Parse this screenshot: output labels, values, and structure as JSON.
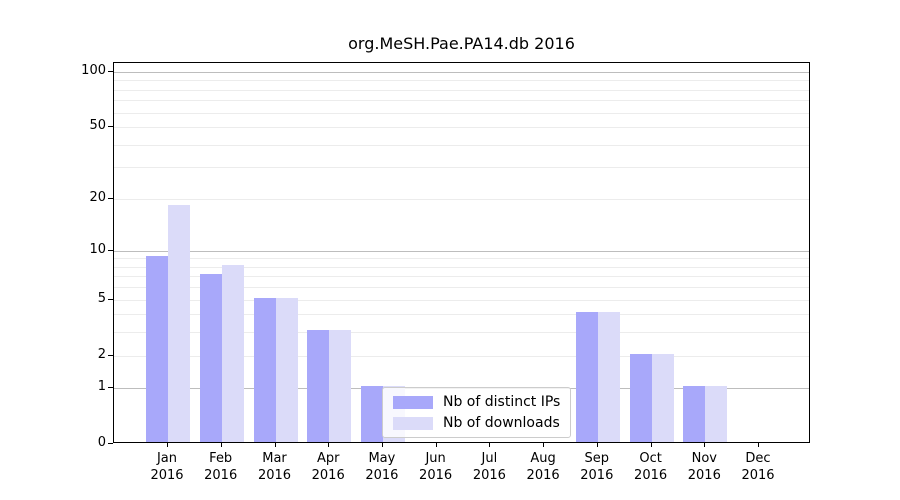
{
  "title": "org.MeSH.Pae.PA14.db 2016",
  "chart_data": {
    "type": "bar",
    "title": "org.MeSH.Pae.PA14.db 2016",
    "categories": [
      "Jan 2016",
      "Feb 2016",
      "Mar 2016",
      "Apr 2016",
      "May 2016",
      "Jun 2016",
      "Jul 2016",
      "Aug 2016",
      "Sep 2016",
      "Oct 2016",
      "Nov 2016",
      "Dec 2016"
    ],
    "x_tick_month_labels": [
      "Jan",
      "Feb",
      "Mar",
      "Apr",
      "May",
      "Jun",
      "Jul",
      "Aug",
      "Sep",
      "Oct",
      "Nov",
      "Dec"
    ],
    "x_tick_year_label": "2016",
    "series": [
      {
        "name": "Nb of distinct IPs",
        "color": "#a8a8fa",
        "values": [
          9,
          7,
          5,
          3,
          1,
          0,
          0,
          0,
          4,
          2,
          1,
          0
        ]
      },
      {
        "name": "Nb of downloads",
        "color": "#dbdbf9",
        "values": [
          18,
          8,
          5,
          3,
          1,
          0,
          0,
          0,
          4,
          2,
          1,
          0
        ]
      }
    ],
    "yscale": "log1p",
    "ylim": [
      0,
      112
    ],
    "y_tick_values": [
      100,
      50,
      20,
      10,
      5,
      2,
      1,
      0
    ],
    "y_tick_labels": [
      "100",
      "50",
      "20",
      "10",
      "5",
      "2",
      "1",
      "0"
    ],
    "y_major_gridlines": [
      1,
      10,
      100
    ],
    "y_minor_gridlines": [
      2,
      3,
      4,
      5,
      6,
      7,
      8,
      9,
      20,
      30,
      40,
      50,
      60,
      70,
      80,
      90
    ],
    "grid": true,
    "legend_position": "lower center, inside axes",
    "colors": {
      "bar_dark": "#a8a8fa",
      "bar_light": "#dbdbf9",
      "grid_minor": "#ececec",
      "grid_major": "#bdbdbd",
      "axis": "#000000",
      "legend_border": "#cccccc"
    }
  }
}
